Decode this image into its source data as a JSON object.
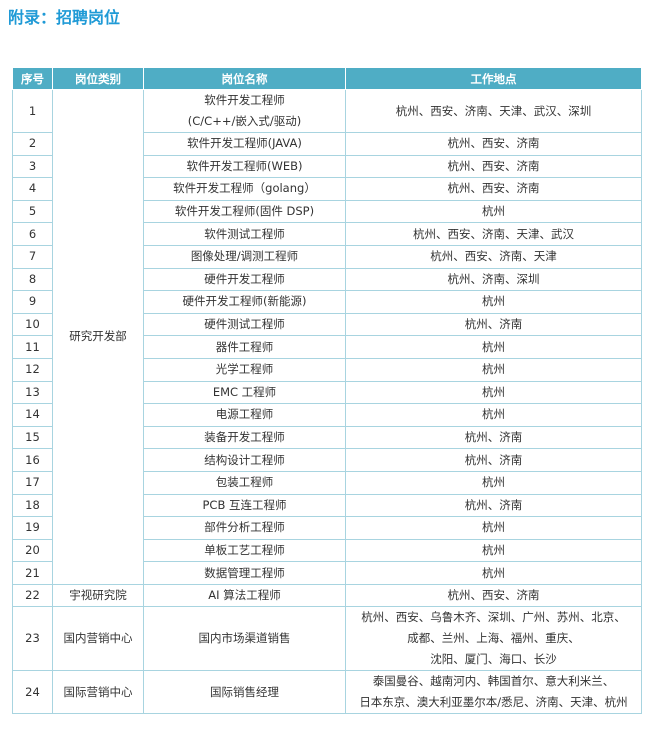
{
  "header": {
    "title": "附录：招聘岗位"
  },
  "table": {
    "columns": [
      "序号",
      "岗位类别",
      "岗位名称",
      "工作地点"
    ],
    "groups": [
      {
        "category": "研究开发部",
        "rows": [
          [
            "1",
            "软件开发工程师\n(C/C++/嵌入式/驱动)",
            "杭州、西安、济南、天津、武汉、深圳"
          ],
          [
            "2",
            "软件开发工程师(JAVA)",
            "杭州、西安、济南"
          ],
          [
            "3",
            "软件开发工程师(WEB)",
            "杭州、西安、济南"
          ],
          [
            "4",
            "软件开发工程师（golang）",
            "杭州、西安、济南"
          ],
          [
            "5",
            "软件开发工程师(固件 DSP)",
            "杭州"
          ],
          [
            "6",
            "软件测试工程师",
            "杭州、西安、济南、天津、武汉"
          ],
          [
            "7",
            "图像处理/调测工程师",
            "杭州、西安、济南、天津"
          ],
          [
            "8",
            "硬件开发工程师",
            "杭州、济南、深圳"
          ],
          [
            "9",
            "硬件开发工程师(新能源)",
            "杭州"
          ],
          [
            "10",
            "硬件测试工程师",
            "杭州、济南"
          ],
          [
            "11",
            "器件工程师",
            "杭州"
          ],
          [
            "12",
            "光学工程师",
            "杭州"
          ],
          [
            "13",
            "EMC 工程师",
            "杭州"
          ],
          [
            "14",
            "电源工程师",
            "杭州"
          ],
          [
            "15",
            "装备开发工程师",
            "杭州、济南"
          ],
          [
            "16",
            "结构设计工程师",
            "杭州、济南"
          ],
          [
            "17",
            "包装工程师",
            "杭州"
          ],
          [
            "18",
            "PCB 互连工程师",
            "杭州、济南"
          ],
          [
            "19",
            "部件分析工程师",
            "杭州"
          ],
          [
            "20",
            "单板工艺工程师",
            "杭州"
          ],
          [
            "21",
            "数据管理工程师",
            "杭州"
          ]
        ]
      },
      {
        "category": "宇视研究院",
        "rows": [
          [
            "22",
            "AI 算法工程师",
            "杭州、西安、济南"
          ]
        ]
      },
      {
        "category": "国内营销中心",
        "rows": [
          [
            "23",
            "国内市场渠道销售",
            "杭州、西安、乌鲁木齐、深圳、广州、苏州、北京、\n成都、兰州、上海、福州、重庆、\n沈阳、厦门、海口、长沙"
          ]
        ]
      },
      {
        "category": "国际营销中心",
        "rows": [
          [
            "24",
            "国际销售经理",
            "泰国曼谷、越南河内、韩国首尔、意大利米兰、\n日本东京、澳大利亚墨尔本/悉尼、济南、天津、杭州"
          ]
        ]
      }
    ]
  }
}
